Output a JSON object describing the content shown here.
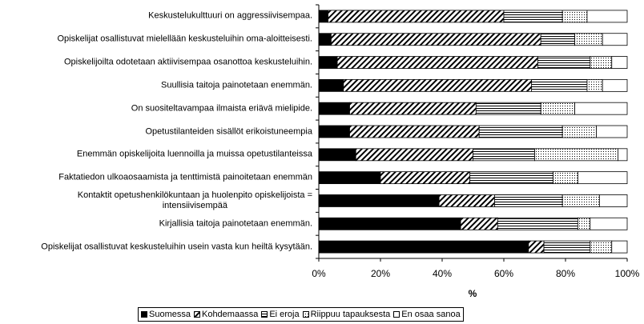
{
  "chart_data": {
    "type": "stacked-bar-horizontal",
    "categories": [
      "Keskustelukulttuuri on aggressiivisempaa.",
      "Opiskelijat osallistuvat mielellään keskusteluihin oma-aloitteisesti.",
      "Opiskelijoilta odotetaan aktiivisempaa osanottoa keskusteluihin.",
      "Suullisia taitoja painotetaan enemmän.",
      "On suositeltavampaa ilmaista eriävä mielipide.",
      "Opetustilanteiden sisällöt erikoistuneempia",
      "Enemmän opiskelijoita luennoilla ja muissa opetustilanteissa",
      "Faktatiedon ulkoaosaamista ja tenttimistä painoitetaan enemmän",
      "Kontaktit opetushenkilökuntaan ja huolenpito opiskelijoista =\nintensiivisempää",
      "Kirjallisia taitoja painotetaan enemmän.",
      "Opiskelijat osallistuvat keskusteluihin usein vasta kun heiltä kysytään."
    ],
    "series": [
      {
        "name": "Suomessa",
        "color": "#000000",
        "pattern": "solid",
        "values": [
          3,
          4,
          6,
          8,
          10,
          10,
          12,
          20,
          39,
          46,
          68
        ]
      },
      {
        "name": "Kohdemaassa",
        "color": "#000000",
        "pattern": "diagonal",
        "values": [
          57,
          68,
          65,
          61,
          41,
          42,
          38,
          29,
          18,
          12,
          5
        ]
      },
      {
        "name": "Ei eroja",
        "color": "#000000",
        "pattern": "horizontal",
        "values": [
          19,
          11,
          17,
          18,
          21,
          27,
          20,
          27,
          22,
          26,
          15
        ]
      },
      {
        "name": "Riippuu tapauksesta",
        "color": "#000000",
        "pattern": "dots",
        "values": [
          8,
          9,
          7,
          5,
          11,
          11,
          27,
          8,
          12,
          4,
          7
        ]
      },
      {
        "name": "En osaa sanoa",
        "color": "#ffffff",
        "pattern": "solid",
        "values": [
          13,
          8,
          5,
          8,
          17,
          10,
          3,
          16,
          9,
          12,
          5
        ]
      }
    ],
    "xlabel": "%",
    "xlim": [
      0,
      100
    ],
    "xticks": [
      {
        "value": 0,
        "label": "0%"
      },
      {
        "value": 20,
        "label": "20%"
      },
      {
        "value": 40,
        "label": "40%"
      },
      {
        "value": 60,
        "label": "60%"
      },
      {
        "value": 80,
        "label": "80%"
      },
      {
        "value": 100,
        "label": "100%"
      }
    ],
    "legend": "bottom"
  }
}
